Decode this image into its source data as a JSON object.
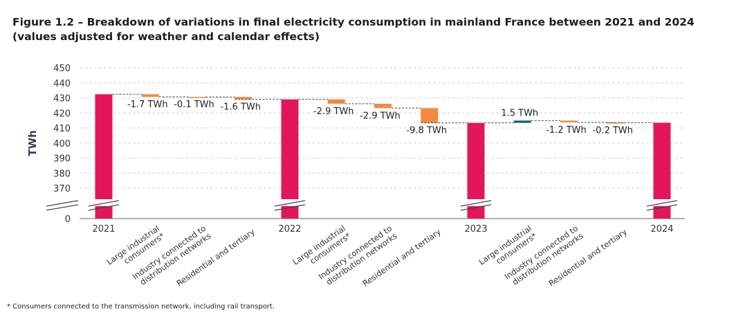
{
  "title_line1": "Figure 1.2 – Breakdown of variations in final electricity consumption in mainland France between 2021 and 2024",
  "title_line2": "(values adjusted for weather and calendar effects)",
  "footnote": "* Consumers connected to the transmission network, including rail transport.",
  "chart_data": {
    "type": "waterfall",
    "ylabel": "TWh",
    "y_ticks": [
      0,
      370,
      380,
      390,
      400,
      410,
      420,
      430,
      440,
      450
    ],
    "ylim": [
      370,
      450
    ],
    "axis_break": "between 0 and 370",
    "grid": true,
    "colors": {
      "total": "#E3165B",
      "decrease": "#F28A3E",
      "increase": "#0E5A8A"
    },
    "bars": [
      {
        "category": [
          "2021"
        ],
        "kind": "total",
        "value": 432.4
      },
      {
        "category": [
          "Large industrial",
          "consumers*"
        ],
        "kind": "delta",
        "value": -1.7,
        "label": "-1.7 TWh"
      },
      {
        "category": [
          "Industry connected to",
          "distribution networks"
        ],
        "kind": "delta",
        "value": -0.1,
        "label": "-0.1 TWh"
      },
      {
        "category": [
          "Residential and tertiary"
        ],
        "kind": "delta",
        "value": -1.6,
        "label": "-1.6 TWh"
      },
      {
        "category": [
          "2022"
        ],
        "kind": "total",
        "value": 429.0
      },
      {
        "category": [
          "Large industrial",
          "consumers*"
        ],
        "kind": "delta",
        "value": -2.9,
        "label": "-2.9 TWh"
      },
      {
        "category": [
          "Industry connected to",
          "distribution networks"
        ],
        "kind": "delta",
        "value": -2.9,
        "label": "-2.9 TWh"
      },
      {
        "category": [
          "Residential and tertiary"
        ],
        "kind": "delta",
        "value": -9.8,
        "label": "-9.8 TWh"
      },
      {
        "category": [
          "2023"
        ],
        "kind": "total",
        "value": 413.4
      },
      {
        "category": [
          "Large industrial",
          "consumers*"
        ],
        "kind": "delta",
        "value": 1.5,
        "label": "1.5 TWh"
      },
      {
        "category": [
          "Industry connected to",
          "distribution networks"
        ],
        "kind": "delta",
        "value": -1.2,
        "label": "-1.2 TWh"
      },
      {
        "category": [
          "Residential and tertiary"
        ],
        "kind": "delta",
        "value": -0.2,
        "label": "-0.2 TWh"
      },
      {
        "category": [
          "2024"
        ],
        "kind": "total",
        "value": 413.5
      }
    ]
  }
}
